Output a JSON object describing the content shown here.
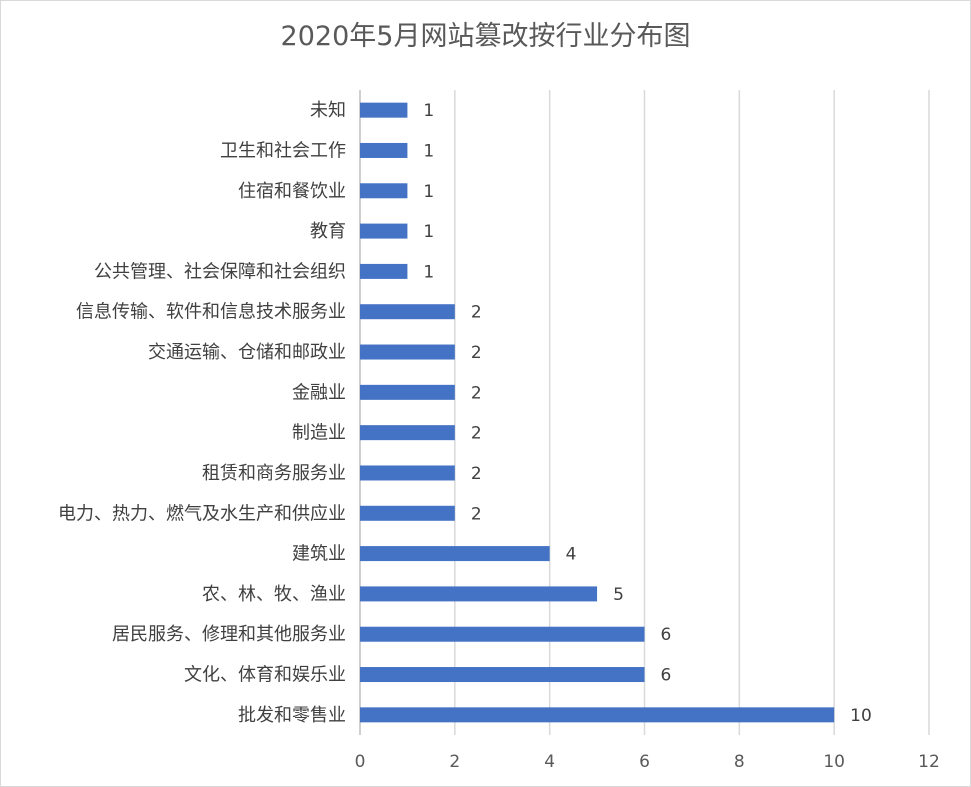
{
  "chart_data": {
    "type": "bar",
    "orientation": "horizontal",
    "title": "2020年5月网站篡改按行业分布图",
    "xlabel": "",
    "ylabel": "",
    "xlim": [
      0,
      12
    ],
    "x_ticks": [
      0,
      2,
      4,
      6,
      8,
      10,
      12
    ],
    "grid": "vertical",
    "legend": "none",
    "data_labels": true,
    "bar_color": "#4472c4",
    "categories": [
      "未知",
      "卫生和社会工作",
      "住宿和餐饮业",
      "教育",
      "公共管理、社会保障和社会组织",
      "信息传输、软件和信息技术服务业",
      "交通运输、仓储和邮政业",
      "金融业",
      "制造业",
      "租赁和商务服务业",
      "电力、热力、燃气及水生产和供应业",
      "建筑业",
      "农、林、牧、渔业",
      "居民服务、修理和其他服务业",
      "文化、体育和娱乐业",
      "批发和零售业"
    ],
    "values": [
      1,
      1,
      1,
      1,
      1,
      2,
      2,
      2,
      2,
      2,
      2,
      4,
      5,
      6,
      6,
      10
    ]
  }
}
